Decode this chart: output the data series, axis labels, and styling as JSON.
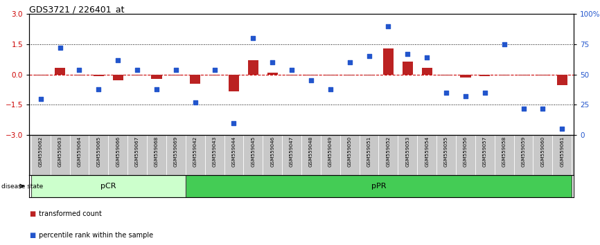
{
  "title": "GDS3721 / 226401_at",
  "samples": [
    "GSM559062",
    "GSM559063",
    "GSM559064",
    "GSM559065",
    "GSM559066",
    "GSM559067",
    "GSM559068",
    "GSM559069",
    "GSM559042",
    "GSM559043",
    "GSM559044",
    "GSM559045",
    "GSM559046",
    "GSM559047",
    "GSM559048",
    "GSM559049",
    "GSM559050",
    "GSM559051",
    "GSM559052",
    "GSM559053",
    "GSM559054",
    "GSM559055",
    "GSM559056",
    "GSM559057",
    "GSM559058",
    "GSM559059",
    "GSM559060",
    "GSM559061"
  ],
  "transformed_count": [
    -0.04,
    0.33,
    -0.04,
    -0.08,
    -0.28,
    -0.04,
    -0.22,
    -0.04,
    -0.45,
    -0.04,
    -0.85,
    0.72,
    0.08,
    -0.04,
    -0.04,
    -0.04,
    -0.04,
    -0.04,
    1.28,
    0.62,
    0.32,
    -0.04,
    -0.14,
    -0.08,
    -0.04,
    -0.04,
    -0.04,
    -0.52
  ],
  "percentile_rank": [
    30,
    72,
    54,
    38,
    62,
    54,
    38,
    54,
    27,
    54,
    10,
    80,
    60,
    54,
    45,
    38,
    60,
    65,
    90,
    67,
    64,
    35,
    32,
    35,
    75,
    22,
    22,
    5
  ],
  "pCR_count": 8,
  "pPR_count": 20,
  "ylim": [
    -3,
    3
  ],
  "yticks_left": [
    -3,
    -1.5,
    0,
    1.5,
    3
  ],
  "yticks_right": [
    0,
    25,
    50,
    75,
    100
  ],
  "hlines": [
    -1.5,
    1.5
  ],
  "bar_color": "#bb2222",
  "dot_color": "#2255cc",
  "pCR_color": "#ccffcc",
  "pPR_color": "#44cc55",
  "label_bar": "transformed count",
  "label_dot": "percentile rank within the sample",
  "disease_state_label": "disease state",
  "pCR_label": "pCR",
  "pPR_label": "pPR",
  "tick_color_left": "#cc0000",
  "tick_color_right": "#2255cc"
}
